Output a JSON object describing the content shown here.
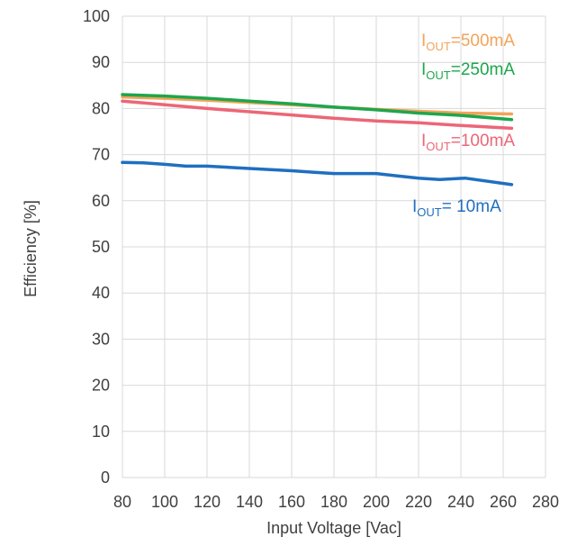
{
  "chart_data": {
    "type": "line",
    "title": "",
    "xlabel": "Input Voltage [Vac]",
    "ylabel": "Efficiency [%]",
    "xlim": [
      80,
      280
    ],
    "ylim": [
      0,
      100
    ],
    "x_ticks": [
      80,
      100,
      120,
      140,
      160,
      180,
      200,
      220,
      240,
      260,
      280
    ],
    "y_ticks": [
      0,
      10,
      20,
      30,
      40,
      50,
      60,
      70,
      80,
      90,
      100
    ],
    "grid": true,
    "legend": "inline labels at right of each series",
    "series": [
      {
        "name": "IOUT=500mA",
        "label_prefix": "I",
        "label_sub": "OUT",
        "label_suffix": "=500mA",
        "color": "#F4A35A",
        "x": [
          80,
          100,
          120,
          140,
          160,
          180,
          200,
          220,
          240,
          264
        ],
        "y": [
          82.5,
          82.2,
          81.8,
          81.3,
          80.8,
          80.3,
          79.8,
          79.4,
          79.0,
          78.8
        ]
      },
      {
        "name": "IOUT=250mA",
        "label_prefix": "I",
        "label_sub": "OUT",
        "label_suffix": "=250mA",
        "color": "#1EA64C",
        "x": [
          80,
          100,
          120,
          140,
          160,
          180,
          200,
          220,
          240,
          264
        ],
        "y": [
          83.0,
          82.7,
          82.2,
          81.6,
          81.0,
          80.3,
          79.7,
          79.0,
          78.5,
          77.6
        ]
      },
      {
        "name": "IOUT=100mA",
        "label_prefix": "I",
        "label_sub": "OUT",
        "label_suffix": "=100mA",
        "color": "#EC6677",
        "x": [
          80,
          100,
          120,
          140,
          160,
          180,
          200,
          220,
          240,
          264
        ],
        "y": [
          81.6,
          80.8,
          80.0,
          79.3,
          78.6,
          77.9,
          77.3,
          76.9,
          76.3,
          75.7
        ]
      },
      {
        "name": "IOUT= 10mA",
        "label_prefix": "I",
        "label_sub": "OUT",
        "label_suffix": "=  10mA",
        "color": "#1F6FC0",
        "x": [
          80,
          90,
          100,
          110,
          120,
          140,
          160,
          170,
          180,
          190,
          200,
          210,
          220,
          230,
          242,
          264
        ],
        "y": [
          68.3,
          68.2,
          67.9,
          67.5,
          67.5,
          67.0,
          66.5,
          66.2,
          65.9,
          65.9,
          65.9,
          65.4,
          64.9,
          64.6,
          64.9,
          63.5
        ]
      }
    ]
  }
}
